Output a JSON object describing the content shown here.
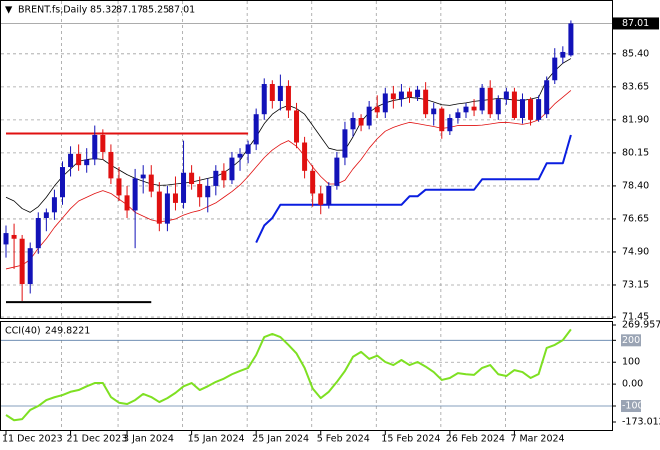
{
  "chart_data": {
    "type": "candlestick",
    "title": "BRENT.fs,Daily",
    "categories": [
      "11 Dec 2023",
      null,
      null,
      null,
      null,
      null,
      null,
      null,
      "21 Dec 2023",
      null,
      null,
      null,
      null,
      null,
      null,
      "3 Jan 2024",
      null,
      null,
      null,
      null,
      null,
      null,
      null,
      "15 Jan 2024",
      null,
      null,
      null,
      null,
      null,
      null,
      null,
      "25 Jan 2024",
      null,
      null,
      null,
      null,
      null,
      null,
      null,
      "5 Feb 2024",
      null,
      null,
      null,
      null,
      null,
      null,
      null,
      "15 Feb 2024",
      null,
      null,
      null,
      null,
      null,
      null,
      null,
      "26 Feb 2024",
      null,
      null,
      null,
      null,
      null,
      null,
      null,
      "7 Mar 2024",
      null,
      null,
      null,
      null,
      null,
      null,
      null
    ],
    "open": [
      75.3,
      75.8,
      75.6,
      73.2,
      75.1,
      76.7,
      77.0,
      77.8,
      79.4,
      80.1,
      79.5,
      79.8,
      81.1,
      80.2,
      78.8,
      77.9,
      77.1,
      78.8,
      79.0,
      78.1,
      76.4,
      78.0,
      77.5,
      79.1,
      78.5,
      77.8,
      78.4,
      79.2,
      78.7,
      79.9,
      80.1,
      80.6,
      82.2,
      83.8,
      82.9,
      83.7,
      82.4,
      80.7,
      79.2,
      78.0,
      77.4,
      78.4,
      79.9,
      81.4,
      82.0,
      81.6,
      82.6,
      82.3,
      83.3,
      83.0,
      83.4,
      83.1,
      83.5,
      82.2,
      82.5,
      81.3,
      82.0,
      82.3,
      82.6,
      82.4,
      83.6,
      82.2,
      83.0,
      83.4,
      82.0,
      83.0,
      81.9,
      82.2,
      84.0,
      85.2,
      85.32
    ],
    "high": [
      76.3,
      76.4,
      75.8,
      75.4,
      77.0,
      77.2,
      78.2,
      79.7,
      80.5,
      80.6,
      80.4,
      81.6,
      81.4,
      80.6,
      79.4,
      78.4,
      79.3,
      79.5,
      79.5,
      78.6,
      78.4,
      78.9,
      80.8,
      79.5,
      78.9,
      78.8,
      79.5,
      79.6,
      80.2,
      80.4,
      80.8,
      82.5,
      84.1,
      84.0,
      84.3,
      84.0,
      82.8,
      81.0,
      79.5,
      78.4,
      78.6,
      80.2,
      81.8,
      82.3,
      82.2,
      82.9,
      83.2,
      83.6,
      83.7,
      83.8,
      83.6,
      83.7,
      83.9,
      82.8,
      82.6,
      82.2,
      82.5,
      82.8,
      83.0,
      83.8,
      84.0,
      83.2,
      83.6,
      83.6,
      83.3,
      83.1,
      83.2,
      84.2,
      85.7,
      85.8,
      87.17
    ],
    "low": [
      74.6,
      74.0,
      72.3,
      72.7,
      74.8,
      76.0,
      76.6,
      77.4,
      78.9,
      79.2,
      79.1,
      79.5,
      79.8,
      78.5,
      77.6,
      76.7,
      75.1,
      78.0,
      77.8,
      76.0,
      76.0,
      77.1,
      77.2,
      78.2,
      77.3,
      77.0,
      77.9,
      78.3,
      78.5,
      79.2,
      79.6,
      80.3,
      81.9,
      82.5,
      82.4,
      82.0,
      80.4,
      78.8,
      77.3,
      76.9,
      77.2,
      78.2,
      79.5,
      81.0,
      81.3,
      81.4,
      82.0,
      82.0,
      82.5,
      82.6,
      82.8,
      82.9,
      82.0,
      81.6,
      80.9,
      81.1,
      81.7,
      82.0,
      82.1,
      82.2,
      82.0,
      81.9,
      82.7,
      81.9,
      81.7,
      81.6,
      81.8,
      82.0,
      83.8,
      84.9,
      85.25
    ],
    "close": [
      75.9,
      75.6,
      73.2,
      75.1,
      76.7,
      77.0,
      77.8,
      79.4,
      80.1,
      79.5,
      79.8,
      81.1,
      80.2,
      78.8,
      77.9,
      77.1,
      78.8,
      79.0,
      78.1,
      76.4,
      78.0,
      77.5,
      79.1,
      78.5,
      77.8,
      78.4,
      79.2,
      78.7,
      79.9,
      80.1,
      80.6,
      82.2,
      83.8,
      82.9,
      83.7,
      82.4,
      80.7,
      79.2,
      78.0,
      77.4,
      78.4,
      79.9,
      81.4,
      82.0,
      81.6,
      82.6,
      82.3,
      83.3,
      83.0,
      83.4,
      83.1,
      83.5,
      82.2,
      82.5,
      81.3,
      82.0,
      82.3,
      82.6,
      82.4,
      83.6,
      82.2,
      83.0,
      83.4,
      82.0,
      83.0,
      81.9,
      83.0,
      84.0,
      85.2,
      85.5,
      87.01
    ],
    "up_color": "#1212b8",
    "down_color": "#e01010",
    "lines": [
      {
        "color": "#000000",
        "width": 0.8,
        "values": [
          77.8,
          77.6,
          77.2,
          77.0,
          77.3,
          77.8,
          78.4,
          78.9,
          79.3,
          79.7,
          79.8,
          79.85,
          79.8,
          79.5,
          79.25,
          79.0,
          78.8,
          78.65,
          78.5,
          78.43,
          78.45,
          78.5,
          78.55,
          78.6,
          78.7,
          78.8,
          78.9,
          79.1,
          79.4,
          79.76,
          80.4,
          81.0,
          81.7,
          82.2,
          82.5,
          82.67,
          82.5,
          82.2,
          81.6,
          81.0,
          80.4,
          80.29,
          80.3,
          81.0,
          81.8,
          82.3,
          82.6,
          82.8,
          82.93,
          83.0,
          83.09,
          83.05,
          82.98,
          82.85,
          82.7,
          82.67,
          82.75,
          82.8,
          82.88,
          82.93,
          82.98,
          83.04,
          83.0,
          82.95,
          82.93,
          83.0,
          83.1,
          84.0,
          84.5,
          84.9,
          85.15
        ]
      },
      {
        "color": "#e01010",
        "width": 0.8,
        "values": [
          74.0,
          74.1,
          74.2,
          74.5,
          75.1,
          75.6,
          76.2,
          76.7,
          77.2,
          77.6,
          77.8,
          78.0,
          78.15,
          78.0,
          77.7,
          77.4,
          77.0,
          76.8,
          76.6,
          76.5,
          76.55,
          76.65,
          76.85,
          77.0,
          77.1,
          77.3,
          77.5,
          77.8,
          78.1,
          78.45,
          78.9,
          79.4,
          79.9,
          80.3,
          80.6,
          80.8,
          80.5,
          80.0,
          79.4,
          78.9,
          78.5,
          78.5,
          78.7,
          79.3,
          79.8,
          80.4,
          80.9,
          81.3,
          81.5,
          81.65,
          81.77,
          81.7,
          81.62,
          81.55,
          81.45,
          81.5,
          81.6,
          81.6,
          81.6,
          81.62,
          81.68,
          81.75,
          81.77,
          81.72,
          81.66,
          81.75,
          81.9,
          82.3,
          82.75,
          83.1,
          83.46
        ]
      },
      {
        "color": "#0a1ee0",
        "width": 2,
        "values": [
          null,
          null,
          null,
          null,
          null,
          null,
          null,
          null,
          null,
          null,
          null,
          null,
          null,
          null,
          null,
          null,
          null,
          null,
          null,
          null,
          null,
          null,
          null,
          null,
          null,
          null,
          null,
          null,
          null,
          null,
          null,
          75.4,
          76.3,
          76.7,
          77.4,
          77.4,
          77.4,
          77.4,
          77.4,
          77.4,
          77.4,
          77.4,
          77.4,
          77.4,
          77.4,
          77.4,
          77.4,
          77.4,
          77.4,
          77.4,
          77.85,
          77.85,
          78.2,
          78.2,
          78.2,
          78.2,
          78.2,
          78.2,
          78.2,
          78.75,
          78.75,
          78.75,
          78.75,
          78.75,
          78.75,
          78.75,
          78.75,
          79.6,
          79.6,
          79.6,
          81.1
        ]
      },
      {
        "color": "#e01010",
        "width": 2,
        "values": [
          81.18,
          81.18,
          81.18,
          81.18,
          81.18,
          81.18,
          81.18,
          81.18,
          81.18,
          81.18,
          81.18,
          81.18,
          81.18,
          81.18,
          81.18,
          81.18,
          81.18,
          81.18,
          81.18,
          81.18,
          81.18,
          81.18,
          81.18,
          81.18,
          81.18,
          81.18,
          81.18,
          81.18,
          81.18,
          81.18,
          81.18,
          null,
          null,
          null,
          null,
          null,
          null,
          null,
          null,
          null,
          null,
          null,
          null,
          null,
          null,
          null,
          null,
          null,
          null,
          null,
          null,
          null,
          null,
          null,
          null,
          null,
          null,
          null,
          null,
          null,
          null,
          null,
          null,
          null,
          null,
          null,
          null,
          null,
          null,
          null,
          null
        ]
      },
      {
        "color": "#000000",
        "width": 2,
        "values": [
          72.24,
          72.24,
          72.24,
          72.24,
          72.24,
          72.24,
          72.24,
          72.24,
          72.24,
          72.24,
          72.24,
          72.24,
          72.24,
          72.24,
          72.24,
          72.24,
          72.24,
          72.24,
          72.24,
          null,
          null,
          null,
          null,
          null,
          null,
          null,
          null,
          null,
          null,
          null,
          null,
          null,
          null,
          null,
          null,
          null,
          null,
          null,
          null,
          null,
          null,
          null,
          null,
          null,
          null,
          null,
          null,
          null,
          null,
          null,
          null,
          null,
          null,
          null,
          null,
          null,
          null,
          null,
          null,
          null,
          null,
          null,
          null,
          null,
          null,
          null,
          null,
          null,
          null,
          null,
          null
        ]
      }
    ],
    "ylim": [
      71.4,
      88.2
    ],
    "yticks": [
      {
        "value": 85.4,
        "label": "85.40"
      },
      83.65,
      {
        "value": 81.9,
        "label": "81.90"
      },
      80.15,
      {
        "value": 78.4,
        "label": "78.40"
      },
      76.65,
      {
        "value": 74.9,
        "label": "74.90"
      },
      73.15,
      71.45
    ],
    "grid": true,
    "cci": {
      "label": "CCI(40)",
      "color": "#7ee022",
      "values": [
        -141,
        -165,
        -160,
        -118,
        -100,
        -73,
        -60,
        -50,
        -35,
        -27,
        -10,
        5,
        5,
        -59,
        -85,
        -91,
        -73,
        -45,
        -59,
        -82,
        -64,
        -40,
        -10,
        5,
        -27,
        -10,
        10,
        25,
        45,
        60,
        74,
        133,
        215,
        229,
        215,
        179,
        140,
        74,
        -20,
        -64,
        -35,
        10,
        60,
        125,
        147,
        115,
        130,
        101,
        87,
        110,
        87,
        101,
        80,
        55,
        19,
        28,
        50,
        45,
        42,
        74,
        87,
        45,
        37,
        64,
        55,
        28,
        46,
        165,
        179,
        201,
        249.8221
      ],
      "ylim": [
        -173.012,
        269.957
      ],
      "yticks": [
        269.957,
        200,
        100,
        {
          "value": 0,
          "label": "0.00"
        },
        -100,
        -173.012
      ],
      "levels": [
        200,
        -100
      ]
    }
  }
}
